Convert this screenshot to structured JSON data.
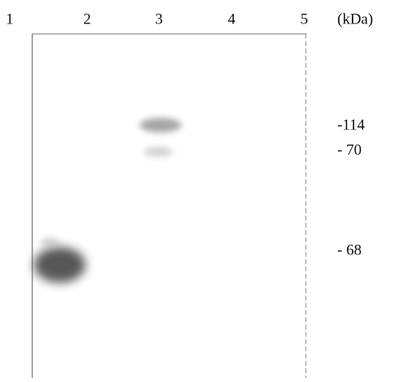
{
  "lanes": [
    "1",
    "2",
    "3",
    "4",
    "5"
  ],
  "unit": "(kDa)",
  "markers": [
    "-114",
    "- 70",
    "- 68"
  ]
}
